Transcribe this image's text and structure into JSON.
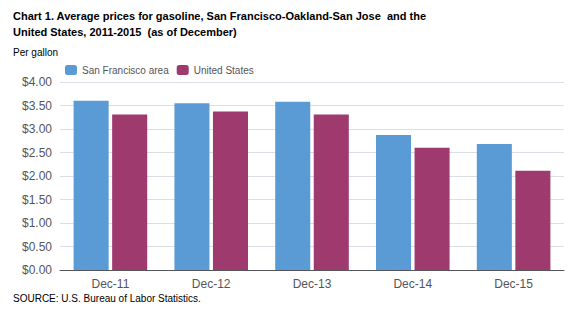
{
  "chart_data": {
    "type": "bar",
    "title": "Chart 1. Average prices for gasoline, San Francisco-Oakland-San Jose  and the",
    "subtitle": "United States, 2011-2015  (as of December)",
    "y_label": "Per gallon",
    "annotations": [
      "SOURCE: U.S. Bureau of Labor Statistics."
    ],
    "categories": [
      "Dec-11",
      "Dec-12",
      "Dec-13",
      "Dec-14",
      "Dec-15"
    ],
    "series": [
      {
        "name": "San Francisco area",
        "color": "#5B9BD5",
        "values": [
          3.6,
          3.55,
          3.58,
          2.87,
          2.68
        ]
      },
      {
        "name": "United States",
        "color": "#9E3A6E",
        "values": [
          3.31,
          3.37,
          3.31,
          2.6,
          2.11
        ]
      }
    ],
    "ylim": [
      0.0,
      4.0
    ],
    "yticks": [
      {
        "value": 0.0,
        "label": "$0.00"
      },
      {
        "value": 0.5,
        "label": "$0.50"
      },
      {
        "value": 1.0,
        "label": "$1.00"
      },
      {
        "value": 1.5,
        "label": "$1.50"
      },
      {
        "value": 2.0,
        "label": "$2.00"
      },
      {
        "value": 2.5,
        "label": "$2.50"
      },
      {
        "value": 3.0,
        "label": "$3.00"
      },
      {
        "value": 3.5,
        "label": "$3.50"
      },
      {
        "value": 4.0,
        "label": "$4.00"
      }
    ],
    "grid": true,
    "legend": "upper left"
  }
}
